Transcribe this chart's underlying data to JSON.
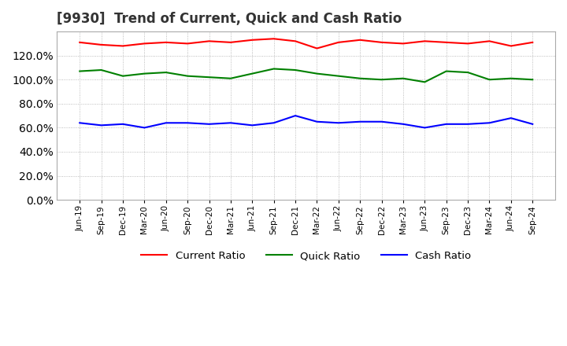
{
  "title": "[9930]  Trend of Current, Quick and Cash Ratio",
  "x_labels": [
    "Jun-19",
    "Sep-19",
    "Dec-19",
    "Mar-20",
    "Jun-20",
    "Sep-20",
    "Dec-20",
    "Mar-21",
    "Jun-21",
    "Sep-21",
    "Dec-21",
    "Mar-22",
    "Jun-22",
    "Sep-22",
    "Dec-22",
    "Mar-23",
    "Jun-23",
    "Sep-23",
    "Dec-23",
    "Mar-24",
    "Jun-24",
    "Sep-24"
  ],
  "current_ratio": [
    131,
    129,
    128,
    130,
    131,
    130,
    132,
    131,
    133,
    134,
    132,
    126,
    131,
    133,
    131,
    130,
    132,
    131,
    130,
    132,
    128,
    131
  ],
  "quick_ratio": [
    107,
    108,
    103,
    105,
    106,
    103,
    102,
    101,
    105,
    109,
    108,
    105,
    103,
    101,
    100,
    101,
    98,
    107,
    106,
    100,
    101,
    100
  ],
  "cash_ratio": [
    64,
    62,
    63,
    60,
    64,
    64,
    63,
    64,
    62,
    64,
    70,
    65,
    64,
    65,
    65,
    63,
    60,
    63,
    63,
    64,
    68,
    63
  ],
  "current_color": "#ff0000",
  "quick_color": "#008000",
  "cash_color": "#0000ff",
  "ylim": [
    0,
    140
  ],
  "yticks": [
    0,
    20,
    40,
    60,
    80,
    100,
    120
  ],
  "background_color": "#ffffff",
  "grid_color": "#aaaaaa",
  "title_fontsize": 12,
  "line_width": 1.5
}
